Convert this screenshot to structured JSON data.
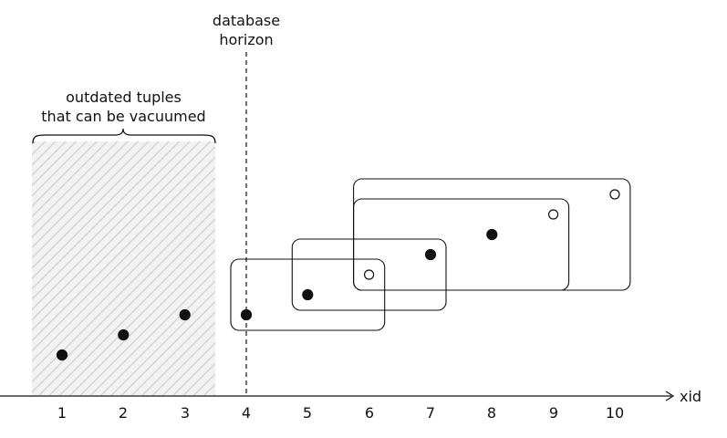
{
  "labels": {
    "horizon_line1": "database",
    "horizon_line2": "horizon",
    "vacuum_line1": "outdated tuples",
    "vacuum_line2": "that can be vacuumed",
    "axis": "xid"
  },
  "ticks": [
    "1",
    "2",
    "3",
    "4",
    "5",
    "6",
    "7",
    "8",
    "9",
    "10"
  ],
  "points": [
    {
      "xid": 1,
      "level": 1,
      "filled": true
    },
    {
      "xid": 2,
      "level": 2,
      "filled": true
    },
    {
      "xid": 3,
      "level": 3,
      "filled": true
    },
    {
      "xid": 4,
      "level": 3,
      "filled": true
    },
    {
      "xid": 5,
      "level": 4,
      "filled": true
    },
    {
      "xid": 6,
      "level": 5,
      "filled": false
    },
    {
      "xid": 7,
      "level": 6,
      "filled": true
    },
    {
      "xid": 8,
      "level": 7,
      "filled": true
    },
    {
      "xid": 9,
      "level": 8,
      "filled": false
    },
    {
      "xid": 10,
      "level": 9,
      "filled": false
    }
  ],
  "snapshots": [
    {
      "from": 4,
      "to": 6
    },
    {
      "from": 5,
      "to": 7
    },
    {
      "from": 6,
      "to": 9
    },
    {
      "from": 6,
      "to": 10
    }
  ],
  "horizon_xid": 4,
  "vacuum_range": [
    1,
    3
  ],
  "colors": {
    "ink": "#111111",
    "hatch": "#cfcfcf",
    "hatch_bg": "#f2f2f2"
  }
}
